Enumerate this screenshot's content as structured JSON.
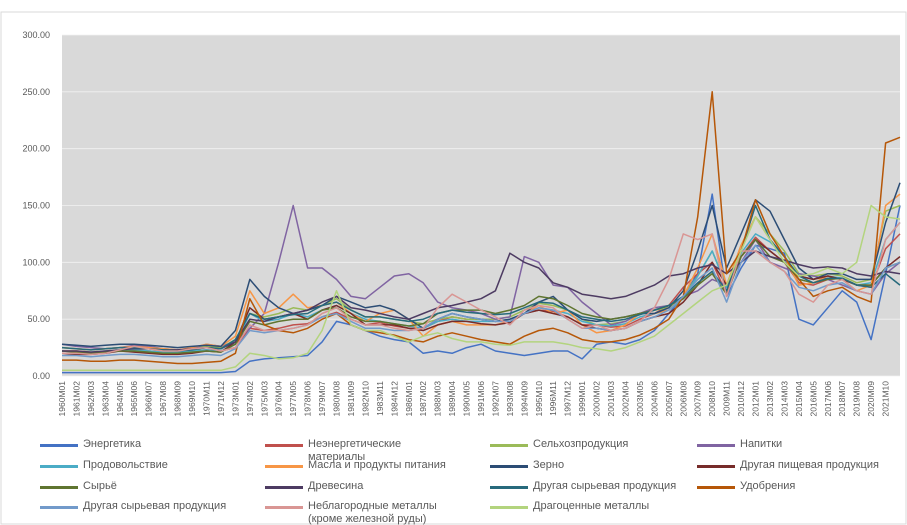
{
  "chart_data": {
    "type": "line",
    "categories": [
      "1960M01",
      "1961M02",
      "1962M03",
      "1963M04",
      "1964M05",
      "1965M06",
      "1966M07",
      "1967M08",
      "1968M09",
      "1969M10",
      "1970M11",
      "1971M12",
      "1973M01",
      "1974M02",
      "1975M03",
      "1976M04",
      "1977M05",
      "1978M06",
      "1979M07",
      "1980M08",
      "1981M09",
      "1982M10",
      "1983M11",
      "1984M12",
      "1986M01",
      "1987M02",
      "1988M03",
      "1989M04",
      "1990M05",
      "1991M06",
      "1992M07",
      "1993M08",
      "1994M09",
      "1995M10",
      "1996M11",
      "1997M12",
      "1999M01",
      "2000M02",
      "2001M03",
      "2002M04",
      "2003M05",
      "2004M06",
      "2005M07",
      "2006M08",
      "2007M09",
      "2008M10",
      "2009M11",
      "2010M12",
      "2012M01",
      "2013M02",
      "2014M03",
      "2015M04",
      "2016M05",
      "2017M06",
      "2018M07",
      "2019M08",
      "2020M09",
      "2021M10",
      null
    ],
    "ylim": [
      0,
      300
    ],
    "yticks": [
      {
        "value": 0,
        "label": "0.00"
      },
      {
        "value": 50,
        "label": "50.00"
      },
      {
        "value": 100,
        "label": "100.00"
      },
      {
        "value": 150,
        "label": "150.00"
      },
      {
        "value": 200,
        "label": "200.00"
      },
      {
        "value": 250,
        "label": "250.00"
      },
      {
        "value": 300,
        "label": "300.00"
      }
    ],
    "grid": true,
    "legend": "bottom",
    "series": [
      {
        "name": "Энергетика",
        "color": "#4472c4",
        "values": [
          3,
          3,
          3,
          3,
          3,
          3,
          3,
          3,
          3,
          3,
          3,
          3,
          4,
          13,
          15,
          16,
          17,
          18,
          30,
          48,
          45,
          40,
          35,
          32,
          30,
          20,
          22,
          20,
          25,
          28,
          22,
          20,
          18,
          20,
          22,
          22,
          15,
          28,
          30,
          28,
          32,
          40,
          55,
          70,
          90,
          160,
          70,
          95,
          115,
          112,
          108,
          50,
          45,
          60,
          75,
          65,
          32,
          90,
          150
        ]
      },
      {
        "name": "Неэнергетические материалы",
        "color": "#c0504d",
        "values": [
          22,
          22,
          21,
          21,
          22,
          23,
          22,
          21,
          21,
          22,
          23,
          22,
          25,
          42,
          40,
          42,
          45,
          46,
          52,
          56,
          50,
          45,
          47,
          44,
          42,
          42,
          48,
          52,
          50,
          50,
          48,
          48,
          55,
          58,
          57,
          52,
          45,
          45,
          43,
          44,
          50,
          55,
          62,
          78,
          90,
          100,
          72,
          105,
          122,
          110,
          100,
          82,
          80,
          85,
          86,
          80,
          78,
          112,
          125
        ]
      },
      {
        "name": "Сельхозпродукция",
        "color": "#9bbb59",
        "values": [
          25,
          24,
          23,
          24,
          25,
          26,
          25,
          24,
          23,
          24,
          26,
          25,
          32,
          55,
          52,
          55,
          60,
          58,
          62,
          68,
          58,
          52,
          52,
          50,
          48,
          46,
          50,
          52,
          50,
          50,
          50,
          52,
          58,
          64,
          62,
          58,
          50,
          45,
          46,
          48,
          55,
          58,
          60,
          70,
          88,
          110,
          80,
          115,
          140,
          125,
          110,
          90,
          88,
          90,
          88,
          82,
          85,
          145,
          150
        ]
      },
      {
        "name": "Напитки",
        "color": "#8064a2",
        "values": [
          28,
          26,
          25,
          24,
          25,
          27,
          26,
          24,
          23,
          24,
          28,
          26,
          30,
          42,
          55,
          100,
          150,
          95,
          95,
          85,
          70,
          68,
          78,
          88,
          90,
          82,
          65,
          60,
          58,
          55,
          50,
          52,
          105,
          100,
          80,
          78,
          65,
          55,
          45,
          48,
          55,
          60,
          62,
          70,
          75,
          85,
          80,
          100,
          120,
          100,
          95,
          90,
          88,
          85,
          80,
          75,
          72,
          90,
          100
        ]
      },
      {
        "name": "Продовольствие",
        "color": "#4bacc6",
        "values": [
          22,
          21,
          21,
          22,
          23,
          23,
          22,
          21,
          21,
          22,
          23,
          22,
          28,
          55,
          48,
          50,
          55,
          52,
          58,
          62,
          55,
          50,
          48,
          46,
          44,
          42,
          48,
          50,
          48,
          48,
          48,
          50,
          55,
          60,
          58,
          55,
          48,
          45,
          44,
          46,
          52,
          55,
          58,
          68,
          88,
          110,
          78,
          108,
          125,
          118,
          105,
          88,
          85,
          88,
          86,
          80,
          82,
          120,
          135
        ]
      },
      {
        "name": "Масла и продукты питания",
        "color": "#f79646",
        "values": [
          25,
          24,
          23,
          24,
          25,
          26,
          25,
          24,
          23,
          25,
          28,
          26,
          35,
          75,
          55,
          60,
          72,
          60,
          62,
          65,
          55,
          48,
          55,
          58,
          50,
          35,
          45,
          48,
          45,
          45,
          45,
          48,
          55,
          62,
          55,
          58,
          45,
          38,
          40,
          45,
          55,
          55,
          58,
          70,
          95,
          125,
          80,
          115,
          140,
          120,
          105,
          80,
          82,
          88,
          85,
          75,
          80,
          150,
          160
        ]
      },
      {
        "name": "Зерно",
        "color": "#2c4d75",
        "values": [
          28,
          27,
          26,
          27,
          28,
          28,
          27,
          26,
          25,
          26,
          27,
          26,
          40,
          85,
          70,
          60,
          55,
          58,
          62,
          70,
          65,
          60,
          62,
          58,
          50,
          42,
          50,
          55,
          52,
          50,
          48,
          50,
          55,
          65,
          70,
          58,
          50,
          48,
          50,
          52,
          55,
          55,
          60,
          75,
          110,
          150,
          95,
          125,
          155,
          145,
          120,
          95,
          85,
          90,
          90,
          85,
          85,
          135,
          170
        ]
      },
      {
        "name": "Другая пищевая продукция",
        "color": "#772c2a",
        "values": [
          20,
          19,
          19,
          20,
          22,
          21,
          20,
          19,
          19,
          20,
          22,
          21,
          30,
          60,
          50,
          52,
          55,
          50,
          58,
          62,
          55,
          45,
          45,
          45,
          42,
          40,
          45,
          48,
          48,
          46,
          45,
          47,
          55,
          58,
          55,
          52,
          45,
          42,
          40,
          42,
          48,
          52,
          55,
          65,
          80,
          100,
          80,
          105,
          120,
          110,
          100,
          88,
          85,
          88,
          85,
          80,
          80,
          95,
          105
        ]
      },
      {
        "name": "Сырьё",
        "color": "#5f7530",
        "values": [
          22,
          21,
          20,
          21,
          22,
          22,
          21,
          20,
          20,
          21,
          22,
          21,
          28,
          48,
          45,
          48,
          50,
          50,
          58,
          60,
          52,
          48,
          48,
          46,
          44,
          46,
          55,
          58,
          58,
          58,
          55,
          58,
          62,
          70,
          68,
          62,
          55,
          52,
          50,
          52,
          55,
          58,
          62,
          68,
          80,
          90,
          72,
          105,
          120,
          105,
          100,
          85,
          82,
          85,
          86,
          80,
          80,
          95,
          100
        ]
      },
      {
        "name": "Древесина",
        "color": "#4d3b62",
        "values": [
          22,
          22,
          21,
          22,
          23,
          24,
          24,
          23,
          23,
          24,
          25,
          24,
          30,
          50,
          48,
          52,
          55,
          58,
          65,
          70,
          60,
          58,
          55,
          52,
          50,
          55,
          60,
          62,
          65,
          68,
          75,
          108,
          100,
          95,
          82,
          78,
          72,
          70,
          68,
          70,
          75,
          80,
          88,
          90,
          95,
          98,
          90,
          100,
          110,
          105,
          102,
          98,
          95,
          96,
          95,
          90,
          88,
          92,
          90
        ]
      },
      {
        "name": "Другая сырьевая продукция",
        "color": "#276a7c",
        "values": [
          25,
          24,
          23,
          24,
          25,
          25,
          24,
          23,
          22,
          23,
          25,
          24,
          32,
          55,
          50,
          52,
          54,
          55,
          62,
          65,
          58,
          52,
          52,
          50,
          48,
          50,
          55,
          58,
          56,
          55,
          54,
          55,
          60,
          65,
          64,
          58,
          52,
          50,
          48,
          50,
          54,
          58,
          62,
          70,
          82,
          92,
          75,
          110,
          150,
          120,
          105,
          88,
          82,
          86,
          86,
          80,
          78,
          90,
          80
        ]
      },
      {
        "name": "Удобрения",
        "color": "#b65708",
        "values": [
          14,
          14,
          13,
          13,
          14,
          14,
          13,
          12,
          11,
          11,
          12,
          13,
          20,
          68,
          45,
          40,
          38,
          42,
          50,
          55,
          45,
          40,
          38,
          36,
          32,
          30,
          35,
          38,
          35,
          32,
          30,
          28,
          35,
          40,
          42,
          38,
          32,
          30,
          30,
          32,
          36,
          42,
          50,
          70,
          140,
          250,
          90,
          110,
          155,
          125,
          105,
          85,
          70,
          75,
          78,
          70,
          65,
          205,
          210
        ]
      },
      {
        "name": "Другая сырьевая продукция",
        "color": "#729aca",
        "values": [
          18,
          18,
          17,
          18,
          19,
          19,
          18,
          17,
          17,
          18,
          19,
          18,
          24,
          40,
          38,
          40,
          42,
          45,
          52,
          55,
          48,
          42,
          42,
          40,
          40,
          42,
          50,
          55,
          52,
          50,
          48,
          48,
          55,
          60,
          58,
          50,
          42,
          42,
          40,
          42,
          48,
          52,
          58,
          70,
          85,
          95,
          65,
          100,
          115,
          100,
          92,
          78,
          75,
          80,
          82,
          75,
          72,
          95,
          100
        ]
      },
      {
        "name": "Неблагородные металлы (кроме железной руды)",
        "color": "#d99694",
        "values": [
          20,
          20,
          19,
          20,
          23,
          26,
          24,
          22,
          22,
          24,
          25,
          22,
          25,
          45,
          40,
          40,
          42,
          45,
          55,
          60,
          50,
          45,
          45,
          42,
          40,
          42,
          60,
          72,
          65,
          58,
          52,
          45,
          58,
          62,
          60,
          50,
          42,
          45,
          40,
          42,
          48,
          60,
          85,
          125,
          120,
          125,
          70,
          110,
          110,
          100,
          92,
          72,
          65,
          80,
          85,
          75,
          72,
          120,
          135
        ]
      },
      {
        "name": "Драгоценные металлы",
        "color": "#b3d47e",
        "values": [
          5,
          5,
          5,
          5,
          5,
          5,
          5,
          5,
          5,
          5,
          5,
          5,
          8,
          20,
          18,
          15,
          16,
          20,
          40,
          75,
          45,
          40,
          40,
          35,
          30,
          35,
          38,
          33,
          30,
          30,
          28,
          27,
          30,
          30,
          30,
          28,
          25,
          24,
          22,
          25,
          30,
          35,
          45,
          55,
          65,
          75,
          80,
          110,
          140,
          120,
          100,
          88,
          90,
          95,
          90,
          100,
          150,
          140,
          138
        ]
      }
    ]
  }
}
